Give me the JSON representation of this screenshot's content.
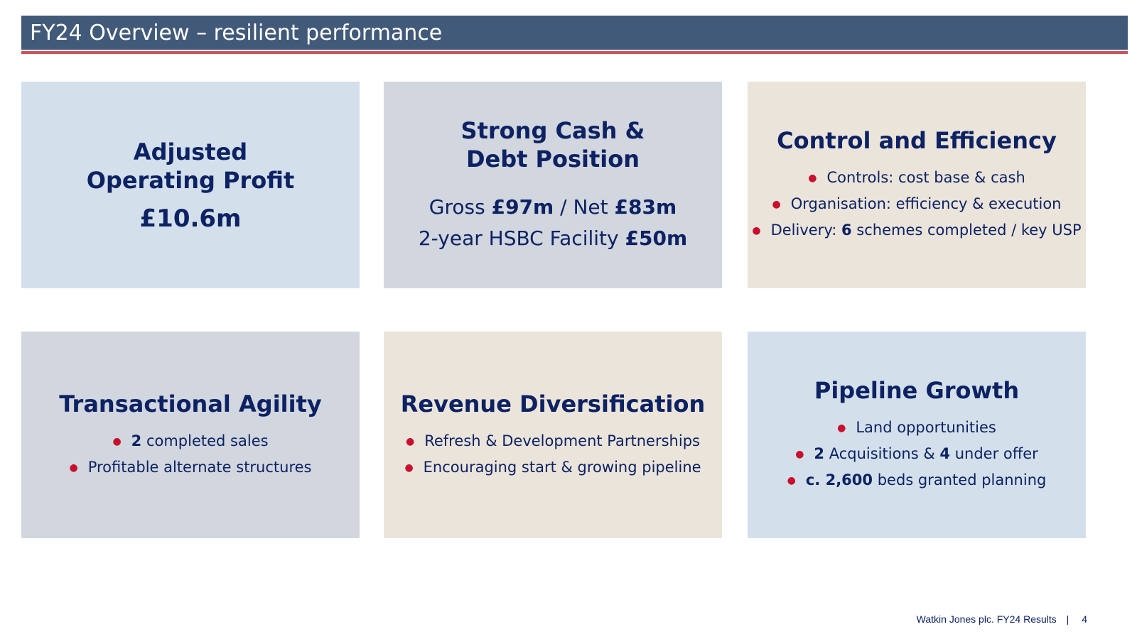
{
  "header": {
    "title": "FY24 Overview – resilient performance"
  },
  "colors": {
    "header_bg": "#425a79",
    "accent_rule": "#c9545f",
    "bullet": "#c8102e",
    "text": "#0d2263"
  },
  "cards": {
    "profit": {
      "title_line1": "Adjusted",
      "title_line2": "Operating Profit",
      "value": "£10.6m"
    },
    "cash": {
      "title_line1": "Strong Cash &",
      "title_line2": "Debt Position",
      "gross_label": "Gross",
      "gross_value": "£97m",
      "slash": "/",
      "net_label": "Net",
      "net_value": "£83m",
      "facility_label": "2-year HSBC Facility",
      "facility_value": "£50m"
    },
    "control": {
      "title": "Control and Efficiency",
      "b1": "Controls: cost base & cash",
      "b2": "Organisation: efficiency & execution",
      "b3_pre": "Delivery: ",
      "b3_bold": "6",
      "b3_post": " schemes completed / key USP"
    },
    "agility": {
      "title": "Transactional Agility",
      "b1_bold": "2",
      "b1_post": " completed sales",
      "b2": "Profitable alternate structures"
    },
    "revenue": {
      "title": "Revenue Diversification",
      "b1": "Refresh & Development Partnerships",
      "b2": "Encouraging start & growing pipeline"
    },
    "pipeline": {
      "title": "Pipeline Growth",
      "b1": "Land opportunities",
      "b2_bold1": "2",
      "b2_mid": " Acquisitions & ",
      "b2_bold2": "4",
      "b2_post": " under offer",
      "b3_bold": "c. 2,600",
      "b3_post": " beds granted planning"
    }
  },
  "footer": {
    "text": "Watkin Jones plc. FY24 Results",
    "separator": "|",
    "page": "4"
  }
}
